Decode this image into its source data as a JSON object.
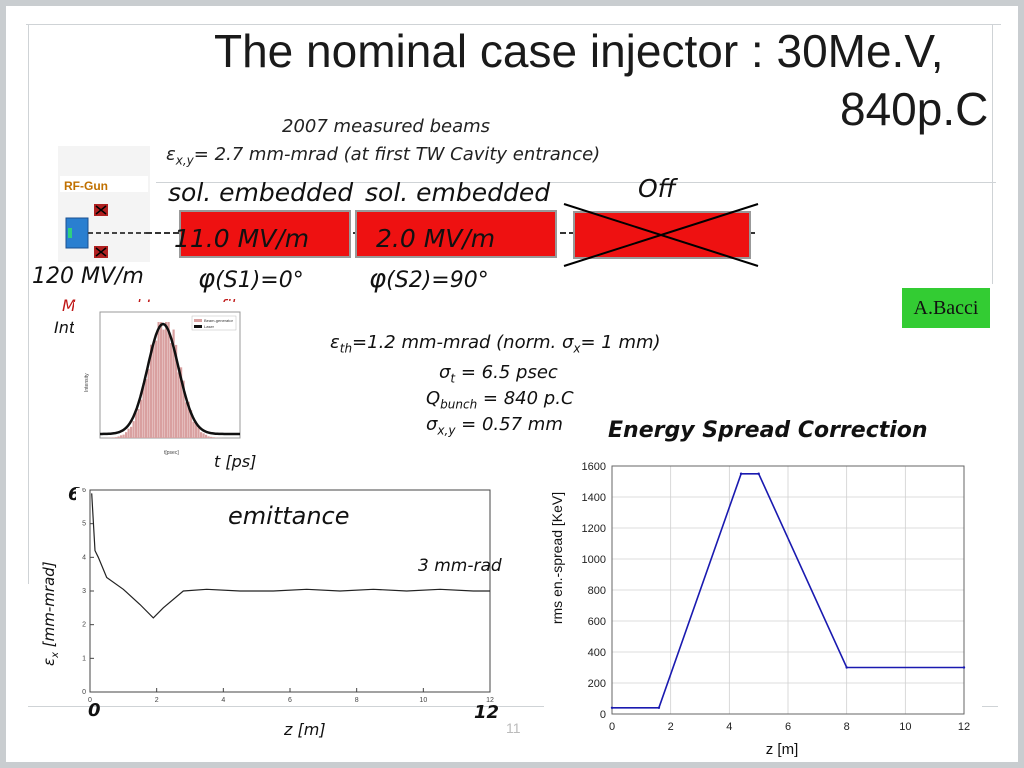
{
  "slide": {
    "title_line1": "The nominal  case injector :  30Me.V,",
    "title_line2": "840p.C",
    "subtitle": "2007 measured beams",
    "emittance_note_prefix": "ε",
    "emittance_note_sub": "x,y",
    "emittance_note_rest": "= 2.7 mm-mrad (at  first TW Cavity entrance)",
    "rf_gun_label": "RF-Gun",
    "sol1_label": "sol. embedded",
    "sol2_label": "sol. embedded",
    "off_label": "Off",
    "field1": "11.0 MV/m",
    "field2": "2.0 MV/m",
    "gun_field": "120 MV/m",
    "phase1": "(S1)=0°",
    "phase2": "(S2)=90°",
    "phi_symbol": "φ",
    "author": "A.Bacci",
    "laser_title": "Measured Laser-profile",
    "int_label": "Int.",
    "t_label": "t [ps]",
    "params": {
      "eth_prefix": "ε",
      "eth_sub": "th",
      "eth_rest": "=1.2 mm-mrad (norm. σ",
      "eth_sub2": "x",
      "eth_rest2": "= 1 mm)",
      "sigma_t_prefix": "σ",
      "sigma_t_sub": "t",
      "sigma_t_rest": " = 6.5 psec",
      "q_prefix": "Q",
      "q_sub": "bunch",
      "q_rest": " = 840 p.C",
      "sxy_prefix": "σ",
      "sxy_sub": "x,y",
      "sxy_rest": " = 0.57 mm"
    },
    "energy_spread_title": "Energy Spread Correction",
    "emittance_label": "emittance",
    "three_mm_rad": "3 mm-rad",
    "ylabel_emit_prefix": "ε",
    "ylabel_emit_sub": "x",
    "ylabel_emit_rest": " [mm-mrad]",
    "emit_y_top": "6",
    "emit_x_start": "0",
    "emit_x_end": "12",
    "emit_xlabel": "z [m]",
    "page_number": "11"
  },
  "laser_plot": {
    "legend": [
      "Beam-generator",
      "Laser"
    ],
    "ylabel": "Intensity",
    "xlabel": "t[psec]",
    "colors": {
      "beam_generator": "#d9a0a0",
      "laser": "#111111"
    }
  },
  "emittance_plot": {
    "y_ticks": [
      "0",
      "1",
      "2",
      "3",
      "4",
      "5",
      "6"
    ],
    "x_ticks": [
      "0",
      "2",
      "4",
      "6",
      "8",
      "10",
      "12"
    ],
    "line_color": "#222222"
  },
  "chart_data": {
    "type": "line",
    "xlabel": "z [m]",
    "ylabel": "rms en.-spread [KeV]",
    "x_ticks": [
      "0",
      "2",
      "4",
      "6",
      "8",
      "10",
      "12"
    ],
    "y_ticks": [
      "0",
      "200",
      "400",
      "600",
      "800",
      "1000",
      "1200",
      "1400",
      "1600"
    ],
    "xlim": [
      0,
      12
    ],
    "ylim": [
      0,
      1600
    ],
    "grid": true,
    "series": [
      {
        "color": "#1a1ab0",
        "x": [
          0,
          1.6,
          4.4,
          5.0,
          8.0,
          12.0
        ],
        "y": [
          40,
          40,
          1550,
          1550,
          300,
          300
        ]
      }
    ]
  }
}
